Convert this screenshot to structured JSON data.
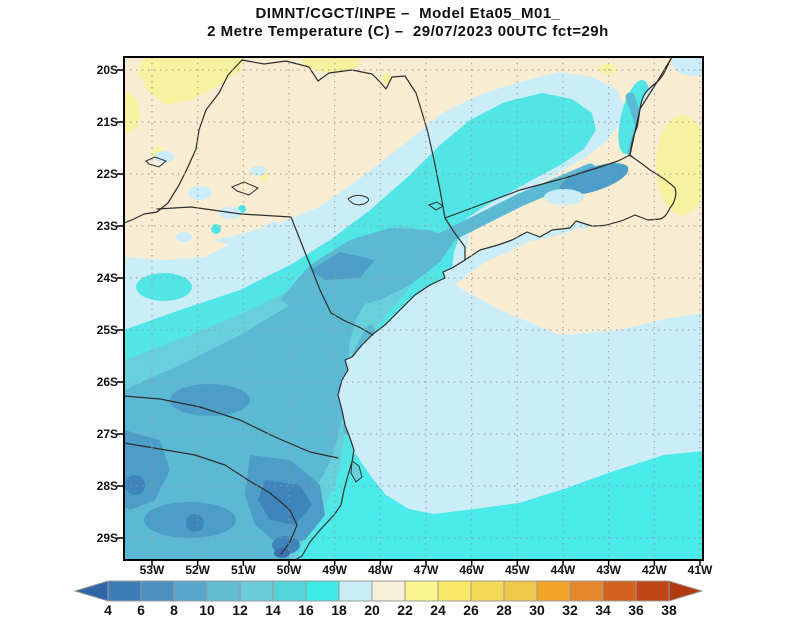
{
  "title": {
    "line1": "DIMNT/CGCT/INPE –  Model Eta05_M01_",
    "line2": "2 Metre Temperature (C) –  29/07/2023 00UTC fct=29h"
  },
  "axes": {
    "lat_labels": [
      "20S",
      "21S",
      "22S",
      "23S",
      "24S",
      "25S",
      "26S",
      "27S",
      "28S",
      "29S"
    ],
    "lon_labels": [
      "53W",
      "52W",
      "51W",
      "50W",
      "49W",
      "48W",
      "47W",
      "46W",
      "45W",
      "44W",
      "43W",
      "42W",
      "41W"
    ]
  },
  "colorbar": {
    "values": [
      "4",
      "6",
      "8",
      "10",
      "12",
      "14",
      "16",
      "18",
      "20",
      "22",
      "24",
      "26",
      "28",
      "30",
      "32",
      "34",
      "36",
      "38"
    ],
    "segment_colors": [
      "#3D7DB5",
      "#4B90C0",
      "#57A6CB",
      "#62BAD3",
      "#6CCBD9",
      "#52D6DB",
      "#3EEAE8",
      "#C9EDF6",
      "#F8EFD9",
      "#FAF58F",
      "#F9E766",
      "#F5DB55",
      "#F0C84C",
      "#F1A629",
      "#E4862B",
      "#D2611F",
      "#C14414"
    ],
    "left_arrow_color": "#2F66A8",
    "right_arrow_color": "#B23A10",
    "border_color": "#9A9A9A"
  },
  "map": {
    "palette": {
      "t22": "#F6F2A0",
      "t20": "#F8EDD3",
      "t18": "#CBEDF7",
      "t16": "#52E5E6",
      "t16o": "#4AEBEA",
      "t14": "#68D0DC",
      "t12": "#5BB9D4",
      "t10": "#4C9DC7",
      "t8": "#3E85BC",
      "t6": "#3A72B2"
    },
    "line_color": "#2E2E2E",
    "grid_color": "#999999",
    "frame_color": "#000000",
    "background": "#FFFFFF"
  }
}
